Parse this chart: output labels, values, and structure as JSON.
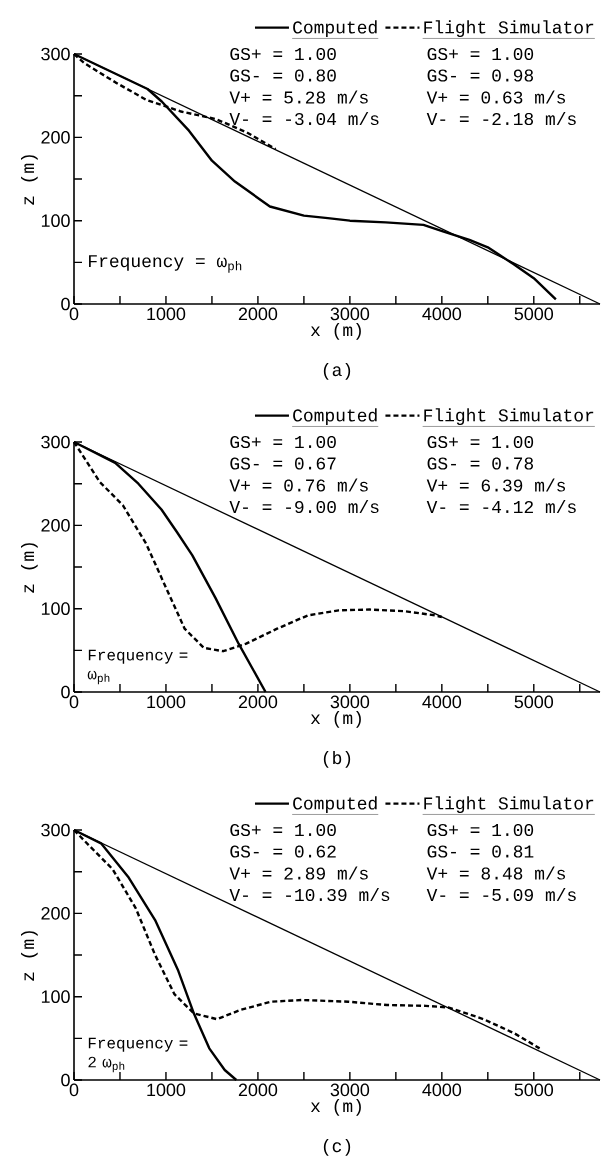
{
  "chart_data": [
    {
      "type": "line",
      "xlabel": "x (m)",
      "ylabel": "z (m)",
      "xlim": [
        0,
        5720
      ],
      "ylim": [
        0,
        300
      ],
      "xticks": [
        0,
        {
          "value": 500,
          "label": null
        },
        1000,
        {
          "value": 1500,
          "label": null
        },
        2000,
        {
          "value": 2500,
          "label": null
        },
        3000,
        {
          "value": 3500,
          "label": null
        },
        4000,
        {
          "value": 4500,
          "label": null
        },
        5000,
        {
          "value": 5500,
          "label": null
        }
      ],
      "yticks": [
        0,
        {
          "value": 50,
          "label": null
        },
        100,
        {
          "value": 150,
          "label": null
        },
        200,
        {
          "value": 250,
          "label": null
        },
        300
      ],
      "legend": "top right",
      "series": [
        {
          "name": "Computed",
          "color": "#000000",
          "line_style": "solid",
          "x": [
            0,
            400,
            800,
            954,
            1250,
            1500,
            1750,
            2130,
            2500,
            2760,
            3000,
            3390,
            3800,
            4020,
            4300,
            4500,
            4778,
            5000,
            5240
          ],
          "values": [
            300,
            279,
            258,
            243,
            208,
            172,
            147,
            117,
            106,
            103,
            100,
            98,
            95,
            87,
            77,
            68,
            48,
            31,
            5.5
          ]
        },
        {
          "name": "Flight Simulator",
          "color": "#000000",
          "line_style": "dashed",
          "x": [
            0,
            113,
            450,
            786,
            1164,
            1542,
            1878,
            2193
          ],
          "values": [
            300,
            289,
            266,
            245,
            231,
            222,
            206,
            186
          ]
        },
        {
          "color": "#000000",
          "line_style": "solid",
          "x": [
            0,
            5720
          ],
          "values": [
            300,
            0
          ]
        }
      ],
      "annotations": [
        "GS+ = 1.00",
        "GS- = 0.80",
        "V+ = 5.28 m/s",
        "V- = -3.04 m/s",
        "GS+ = 1.00",
        "GS- = 0.98",
        "V+ = 0.63 m/s",
        "V- = -2.18 m/s",
        "Frequency = ω$_{ph}$",
        "(a)"
      ]
    },
    {
      "type": "line",
      "xlabel": "x (m)",
      "ylabel": "z (m)",
      "xlim": [
        0,
        5720
      ],
      "ylim": [
        0,
        300
      ],
      "xticks": [
        0,
        {
          "value": 500,
          "label": null
        },
        1000,
        {
          "value": 1500,
          "label": null
        },
        2000,
        {
          "value": 2500,
          "label": null
        },
        3000,
        {
          "value": 3500,
          "label": null
        },
        4000,
        {
          "value": 4500,
          "label": null
        },
        5000,
        {
          "value": 5500,
          "label": null
        }
      ],
      "yticks": [
        0,
        {
          "value": 50,
          "label": null
        },
        100,
        {
          "value": 150,
          "label": null
        },
        200,
        {
          "value": 250,
          "label": null
        },
        300
      ],
      "legend": "top right",
      "series": [
        {
          "name": "Computed",
          "color": "#000000",
          "line_style": "solid",
          "x": [
            0,
            448,
            700,
            951,
            1119,
            1287,
            1538,
            1790,
            2083
          ],
          "values": [
            300,
            275,
            250,
            219,
            192,
            164,
            113,
            58,
            0
          ]
        },
        {
          "name": "Flight Simulator",
          "color": "#000000",
          "line_style": "dashed",
          "x": [
            0,
            281,
            532,
            784,
            993,
            1203,
            1412,
            1622,
            1873,
            2209,
            2544,
            2879,
            3215,
            3592,
            3927,
            4000
          ],
          "values": [
            300,
            252,
            224,
            178,
            127,
            76,
            53,
            49,
            58,
            76,
            92,
            98,
            99,
            97,
            92,
            90
          ]
        },
        {
          "color": "#000000",
          "line_style": "solid",
          "x": [
            0,
            5720
          ],
          "values": [
            300,
            0
          ]
        }
      ],
      "annotations": [
        "GS+ = 1.00",
        "GS- = 0.67",
        "V+ = 0.76 m/s",
        "V- = -9.00 m/s",
        "GS+ = 1.00",
        "GS- = 0.78",
        "V+ = 6.39 m/s",
        "V- = -4.12 m/s",
        "Frequency = ω$_{ph}$",
        "(b)"
      ]
    },
    {
      "type": "line",
      "xlabel": "x (m)",
      "ylabel": "z (m)",
      "xlim": [
        0,
        5720
      ],
      "ylim": [
        0,
        300
      ],
      "xticks": [
        0,
        {
          "value": 500,
          "label": null
        },
        1000,
        {
          "value": 1500,
          "label": null
        },
        2000,
        {
          "value": 2500,
          "label": null
        },
        3000,
        {
          "value": 3500,
          "label": null
        },
        4000,
        {
          "value": 4500,
          "label": null
        },
        5000,
        {
          "value": 5500,
          "label": null
        }
      ],
      "yticks": [
        0,
        {
          "value": 50,
          "label": null
        },
        100,
        {
          "value": 150,
          "label": null
        },
        200,
        {
          "value": 250,
          "label": null
        },
        300
      ],
      "legend": "top right",
      "series": [
        {
          "name": "Computed",
          "color": "#000000",
          "line_style": "solid",
          "x": [
            0,
            294,
            588,
            882,
            1134,
            1303,
            1471,
            1639,
            1765
          ],
          "values": [
            300,
            284,
            244,
            192,
            131,
            80,
            38,
            12,
            0
          ]
        },
        {
          "name": "Flight Simulator",
          "color": "#000000",
          "line_style": "dashed",
          "x": [
            0,
            168,
            420,
            672,
            882,
            1092,
            1303,
            1555,
            1807,
            2143,
            2479,
            2983,
            3403,
            3824,
            4076,
            4454,
            4790,
            5063
          ],
          "values": [
            300,
            281,
            253,
            206,
            150,
            103,
            80,
            73,
            84,
            94,
            96,
            94,
            90,
            89,
            87,
            73,
            56,
            38
          ]
        },
        {
          "color": "#000000",
          "line_style": "solid",
          "x": [
            0,
            5720
          ],
          "values": [
            300,
            0
          ]
        }
      ],
      "annotations": [
        "GS+ = 1.00",
        "GS- = 0.62",
        "V+ = 2.89 m/s",
        "V- = -10.39 m/s",
        "GS+ = 1.00",
        "GS- = 0.81",
        "V+ = 8.48 m/s",
        "V- = -5.09 m/s",
        "Frequency = 2 ω$_{ph}$",
        "(c)"
      ]
    }
  ]
}
